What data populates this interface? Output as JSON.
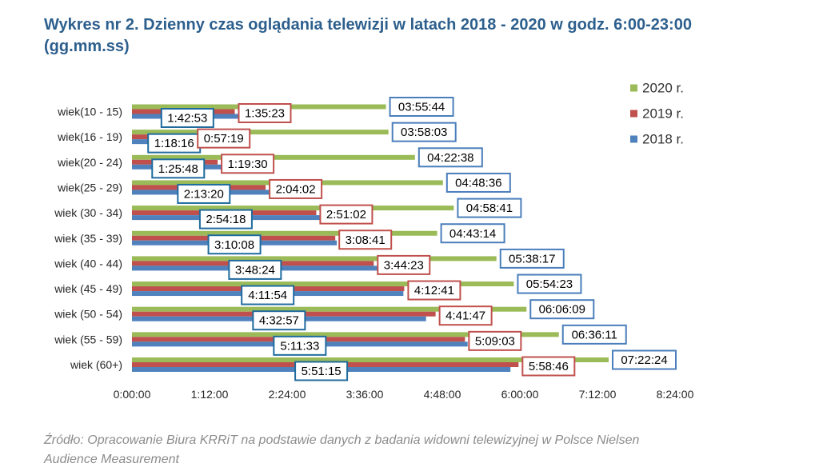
{
  "chart_data": {
    "type": "bar",
    "horizontal": true,
    "title": "Wykres nr 2. Dzienny czas oglądania telewizji w latach 2018 - 2020 w godz. 6:00-23:00 (gg.mm.ss)",
    "xlabel": "",
    "ylabel": "",
    "grid": false,
    "legend_position": "right",
    "categories": [
      "wiek(10 - 15)",
      "wiek(16 - 19)",
      "wiek(20 - 24)",
      "wiek(25 - 29)",
      "wiek (30 - 34)",
      "wiek (35 - 39)",
      "wiek (40 - 44)",
      "wiek (45 - 49)",
      "wiek (50 - 54)",
      "wiek (55 - 59)",
      "wiek (60+)"
    ],
    "series": [
      {
        "name": "2020 r.",
        "color": "#9bbb59",
        "label_border": "#4a7ebb",
        "labels": [
          "03:55:44",
          "03:58:03",
          "04:22:38",
          "04:48:36",
          "04:58:41",
          "04:43:14",
          "05:38:17",
          "05:54:23",
          "06:06:09",
          "06:36:11",
          "07:22:24"
        ],
        "values_seconds": [
          14144,
          14283,
          15758,
          17316,
          17921,
          16994,
          20297,
          21263,
          21969,
          23771,
          26544
        ]
      },
      {
        "name": "2019 r.",
        "color": "#c0504d",
        "label_border": "#c0504d",
        "labels": [
          "1:35:23",
          "0:57:19",
          "1:19:30",
          "2:04:02",
          "2:51:02",
          "3:08:41",
          "3:44:23",
          "4:12:41",
          "4:41:47",
          "5:09:03",
          "5:58:46"
        ],
        "values_seconds": [
          5723,
          3439,
          4770,
          7442,
          10262,
          11321,
          13463,
          15161,
          16907,
          18543,
          21526
        ]
      },
      {
        "name": "2018 r.",
        "color": "#4f81bd",
        "label_border": "#1f6b9e",
        "labels": [
          "1:42:53",
          "1:18:16",
          "1:25:48",
          "2:13:20",
          "2:54:18",
          "3:10:08",
          "3:48:24",
          "4:11:54",
          "4:32:57",
          "5:11:33",
          "5:51:15"
        ],
        "values_seconds": [
          6173,
          4696,
          5148,
          8000,
          10458,
          11408,
          13704,
          15114,
          16377,
          18693,
          21075
        ]
      }
    ],
    "xlim_seconds": [
      0,
      30240
    ],
    "x_ticks_seconds": [
      0,
      4320,
      8640,
      12960,
      17280,
      21600,
      25920,
      30240
    ],
    "x_tick_labels": [
      "0:00:00",
      "1:12:00",
      "2:24:00",
      "3:36:00",
      "4:48:00",
      "6:00:00",
      "7:12:00",
      "8:24:00"
    ]
  },
  "source": "Źródło: Opracowanie Biura KRRiT na podstawie danych z badania widowni telewizyjnej w Polsce Nielsen Audience Measurement"
}
